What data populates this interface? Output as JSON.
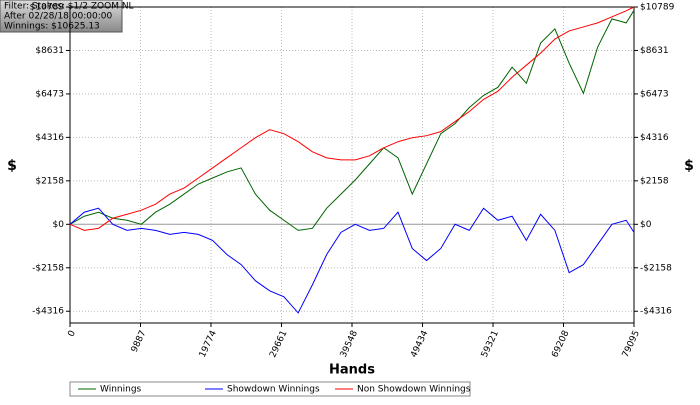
{
  "chart_data": {
    "type": "line",
    "info": [
      "Filter: Stakes: $1/2 ZOOM NL",
      "After 02/28/18 00:00:00",
      "Winnings: $10625.13"
    ],
    "x_label": "Hands",
    "y_label": "$",
    "x": [
      0,
      2000,
      4000,
      6000,
      8000,
      10000,
      12000,
      14000,
      16000,
      18000,
      20000,
      22000,
      24000,
      26000,
      28000,
      30000,
      32000,
      34000,
      36000,
      38000,
      40000,
      42000,
      44000,
      46000,
      48000,
      50000,
      52000,
      54000,
      56000,
      58000,
      60000,
      62000,
      64000,
      66000,
      68000,
      70000,
      72000,
      74000,
      76000,
      78000,
      79095
    ],
    "series": [
      {
        "name": "Winnings",
        "color": "#006400",
        "values": [
          0,
          400,
          600,
          300,
          200,
          0,
          600,
          1000,
          1500,
          2000,
          2300,
          2600,
          2800,
          1500,
          700,
          200,
          -300,
          -200,
          800,
          1500,
          2200,
          3000,
          3800,
          3300,
          1500,
          3000,
          4500,
          5000,
          5800,
          6400,
          6800,
          7800,
          7000,
          9000,
          9700,
          8000,
          6500,
          8800,
          10200,
          10000,
          10625
        ]
      },
      {
        "name": "Showdown Winnings",
        "color": "#0000ff",
        "values": [
          0,
          600,
          800,
          0,
          -300,
          -200,
          -300,
          -500,
          -400,
          -500,
          -800,
          -1500,
          -2000,
          -2800,
          -3300,
          -3600,
          -4400,
          -3000,
          -1500,
          -400,
          0,
          -300,
          -200,
          600,
          -1200,
          -1800,
          -1200,
          0,
          -300,
          800,
          200,
          400,
          -800,
          500,
          -300,
          -2400,
          -2000,
          -1000,
          0,
          200,
          -400
        ]
      },
      {
        "name": "Non Showdown Winnings",
        "color": "#ff0000",
        "values": [
          0,
          -300,
          -200,
          300,
          500,
          700,
          1000,
          1500,
          1800,
          2300,
          2800,
          3300,
          3800,
          4300,
          4700,
          4500,
          4100,
          3600,
          3300,
          3200,
          3200,
          3400,
          3800,
          4100,
          4300,
          4400,
          4600,
          5100,
          5600,
          6200,
          6600,
          7300,
          7900,
          8500,
          9200,
          9600,
          9800,
          10000,
          10300,
          10600,
          10789
        ]
      }
    ],
    "xlim": [
      0,
      79095
    ],
    "xticks": [
      0,
      9887,
      19774,
      29661,
      39548,
      49434,
      59321,
      69208,
      79095
    ],
    "ylim": [
      -4900,
      10789
    ],
    "yticks": [
      {
        "value": -4316,
        "label": "-$4316"
      },
      {
        "value": -2158,
        "label": "-$2158"
      },
      {
        "value": 0,
        "label": "$0"
      },
      {
        "value": 2158,
        "label": "$2158"
      },
      {
        "value": 4316,
        "label": "$4316"
      },
      {
        "value": 6473,
        "label": "$6473"
      },
      {
        "value": 8631,
        "label": "$8631"
      },
      {
        "value": 10789,
        "label": "$10789"
      }
    ],
    "grid": true
  }
}
